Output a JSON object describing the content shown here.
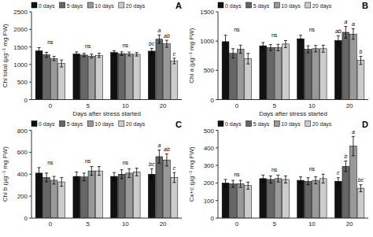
{
  "chart_data": [
    {
      "type": "bar",
      "title": "A",
      "ylabel": "Chl total (µg⁻¹ mg FW)",
      "xlabel": "Days after stress started",
      "categories": [
        "0",
        "5",
        "10",
        "20"
      ],
      "ylim": [
        0,
        2500
      ],
      "yticks": [
        0,
        500,
        1000,
        1500,
        2000,
        2500
      ],
      "grid": false,
      "legend": "upper left",
      "series": [
        {
          "name": "0 days",
          "color": "#111111",
          "values": [
            1390,
            1300,
            1340,
            1380
          ],
          "errors": [
            90,
            60,
            50,
            80
          ]
        },
        {
          "name": "5 days",
          "color": "#666666",
          "values": [
            1275,
            1270,
            1310,
            1720
          ],
          "errors": [
            70,
            50,
            50,
            120
          ]
        },
        {
          "name": "10 days",
          "color": "#999999",
          "values": [
            1170,
            1240,
            1300,
            1590
          ],
          "errors": [
            60,
            55,
            55,
            100
          ]
        },
        {
          "name": "20 days",
          "color": "#cccccc",
          "values": [
            1030,
            1260,
            1290,
            1100
          ],
          "errors": [
            100,
            60,
            50,
            80
          ]
        }
      ],
      "annotations": [
        {
          "text": "ns",
          "category": "0"
        },
        {
          "text": "ns",
          "category": "5"
        },
        {
          "text": "ns",
          "category": "10"
        },
        {
          "text": "bc",
          "category": "20",
          "series": "0 days"
        },
        {
          "text": "a",
          "category": "20",
          "series": "5 days"
        },
        {
          "text": "ab",
          "category": "20",
          "series": "10 days"
        },
        {
          "text": "c",
          "category": "20",
          "series": "20 days"
        }
      ]
    },
    {
      "type": "bar",
      "title": "B",
      "ylabel": "Chl a (µg⁻¹ mg FW)",
      "xlabel": "Days after stress started",
      "categories": [
        "0",
        "5",
        "10",
        "20"
      ],
      "ylim": [
        0,
        1500
      ],
      "yticks": [
        0,
        500,
        1000,
        1500
      ],
      "grid": false,
      "legend": "upper left",
      "series": [
        {
          "name": "0 days",
          "color": "#111111",
          "values": [
            990,
            920,
            1040,
            1010
          ],
          "errors": [
            110,
            55,
            60,
            80
          ]
        },
        {
          "name": "5 days",
          "color": "#666666",
          "values": [
            790,
            890,
            860,
            1150
          ],
          "errors": [
            80,
            50,
            60,
            100
          ]
        },
        {
          "name": "10 days",
          "color": "#999999",
          "values": [
            860,
            890,
            870,
            1120
          ],
          "errors": [
            70,
            55,
            55,
            90
          ]
        },
        {
          "name": "20 days",
          "color": "#cccccc",
          "values": [
            700,
            950,
            870,
            670
          ],
          "errors": [
            90,
            60,
            60,
            70
          ]
        }
      ],
      "annotations": [
        {
          "text": "ns",
          "category": "0"
        },
        {
          "text": "ns",
          "category": "5"
        },
        {
          "text": "ns",
          "category": "10"
        },
        {
          "text": "ab",
          "category": "20",
          "series": "0 days"
        },
        {
          "text": "a",
          "category": "20",
          "series": "5 days"
        },
        {
          "text": "a",
          "category": "20",
          "series": "10 days"
        },
        {
          "text": "b",
          "category": "20",
          "series": "20 days"
        }
      ]
    },
    {
      "type": "bar",
      "title": "C",
      "ylabel": "Chl b (µg⁻¹ mg FW)",
      "categories": [
        "0",
        "5",
        "10",
        "20"
      ],
      "ylim": [
        0,
        800
      ],
      "yticks": [
        0,
        200,
        400,
        600,
        800
      ],
      "grid": false,
      "legend": "upper left",
      "series": [
        {
          "name": "0 days",
          "color": "#111111",
          "values": [
            410,
            380,
            380,
            400
          ],
          "errors": [
            50,
            40,
            35,
            50
          ]
        },
        {
          "name": "5 days",
          "color": "#666666",
          "values": [
            370,
            375,
            400,
            560
          ],
          "errors": [
            40,
            35,
            40,
            60
          ]
        },
        {
          "name": "10 days",
          "color": "#999999",
          "values": [
            345,
            430,
            410,
            530
          ],
          "errors": [
            35,
            40,
            40,
            55
          ]
        },
        {
          "name": "20 days",
          "color": "#cccccc",
          "values": [
            330,
            430,
            420,
            370
          ],
          "errors": [
            40,
            40,
            35,
            45
          ]
        }
      ],
      "annotations": [
        {
          "text": "ns",
          "category": "0"
        },
        {
          "text": "ns",
          "category": "5"
        },
        {
          "text": "ns",
          "category": "10"
        },
        {
          "text": "bc",
          "category": "20",
          "series": "0 days"
        },
        {
          "text": "a",
          "category": "20",
          "series": "5 days"
        },
        {
          "text": "ab",
          "category": "20",
          "series": "10 days"
        },
        {
          "text": "c",
          "category": "20",
          "series": "20 days"
        }
      ]
    },
    {
      "type": "bar",
      "title": "D",
      "ylabel": "Cx+c (µg⁻¹ mg FW)",
      "categories": [
        "0",
        "5",
        "10",
        "20"
      ],
      "ylim": [
        0,
        500
      ],
      "yticks": [
        0,
        100,
        200,
        300,
        400,
        500
      ],
      "grid": false,
      "legend": "upper left",
      "series": [
        {
          "name": "0 days",
          "color": "#111111",
          "values": [
            200,
            225,
            215,
            210
          ],
          "errors": [
            20,
            20,
            20,
            20
          ]
        },
        {
          "name": "5 days",
          "color": "#666666",
          "values": [
            195,
            220,
            210,
            295
          ],
          "errors": [
            20,
            20,
            20,
            30
          ]
        },
        {
          "name": "10 days",
          "color": "#999999",
          "values": [
            195,
            225,
            215,
            410
          ],
          "errors": [
            20,
            20,
            20,
            55
          ]
        },
        {
          "name": "20 days",
          "color": "#cccccc",
          "values": [
            185,
            220,
            225,
            170
          ],
          "errors": [
            20,
            20,
            25,
            20
          ]
        }
      ],
      "annotations": [
        {
          "text": "ns",
          "category": "0"
        },
        {
          "text": "ns",
          "category": "5"
        },
        {
          "text": "ns",
          "category": "10"
        },
        {
          "text": "c",
          "category": "20",
          "series": "0 days"
        },
        {
          "text": "b",
          "category": "20",
          "series": "5 days"
        },
        {
          "text": "a",
          "category": "20",
          "series": "10 days"
        },
        {
          "text": "bc",
          "category": "20",
          "series": "20 days"
        }
      ]
    }
  ]
}
